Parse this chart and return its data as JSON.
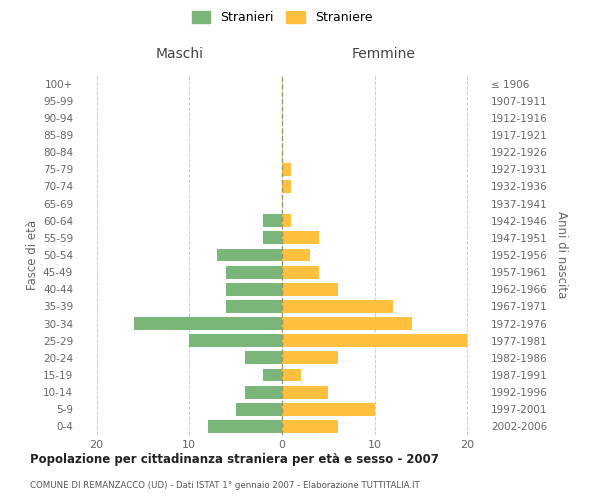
{
  "age_groups": [
    "100+",
    "95-99",
    "90-94",
    "85-89",
    "80-84",
    "75-79",
    "70-74",
    "65-69",
    "60-64",
    "55-59",
    "50-54",
    "45-49",
    "40-44",
    "35-39",
    "30-34",
    "25-29",
    "20-24",
    "15-19",
    "10-14",
    "5-9",
    "0-4"
  ],
  "birth_years": [
    "≤ 1906",
    "1907-1911",
    "1912-1916",
    "1917-1921",
    "1922-1926",
    "1927-1931",
    "1932-1936",
    "1937-1941",
    "1942-1946",
    "1947-1951",
    "1952-1956",
    "1957-1961",
    "1962-1966",
    "1967-1971",
    "1972-1976",
    "1977-1981",
    "1982-1986",
    "1987-1991",
    "1992-1996",
    "1997-2001",
    "2002-2006"
  ],
  "males": [
    0,
    0,
    0,
    0,
    0,
    0,
    0,
    0,
    2,
    2,
    7,
    6,
    6,
    6,
    16,
    10,
    4,
    2,
    4,
    5,
    8
  ],
  "females": [
    0,
    0,
    0,
    0,
    0,
    1,
    1,
    0,
    1,
    4,
    3,
    4,
    6,
    12,
    14,
    20,
    6,
    2,
    5,
    10,
    6
  ],
  "male_color": "#7ab57a",
  "female_color": "#ffc040",
  "title": "Popolazione per cittadinanza straniera per età e sesso - 2007",
  "subtitle": "COMUNE DI REMANZACCO (UD) - Dati ISTAT 1° gennaio 2007 - Elaborazione TUTTITALIA.IT",
  "legend_male": "Stranieri",
  "legend_female": "Straniere",
  "xlabel_left": "Maschi",
  "xlabel_right": "Femmine",
  "ylabel_left": "Fasce di età",
  "ylabel_right": "Anni di nascita",
  "xlim": 22,
  "background_color": "#ffffff",
  "grid_color": "#cccccc"
}
